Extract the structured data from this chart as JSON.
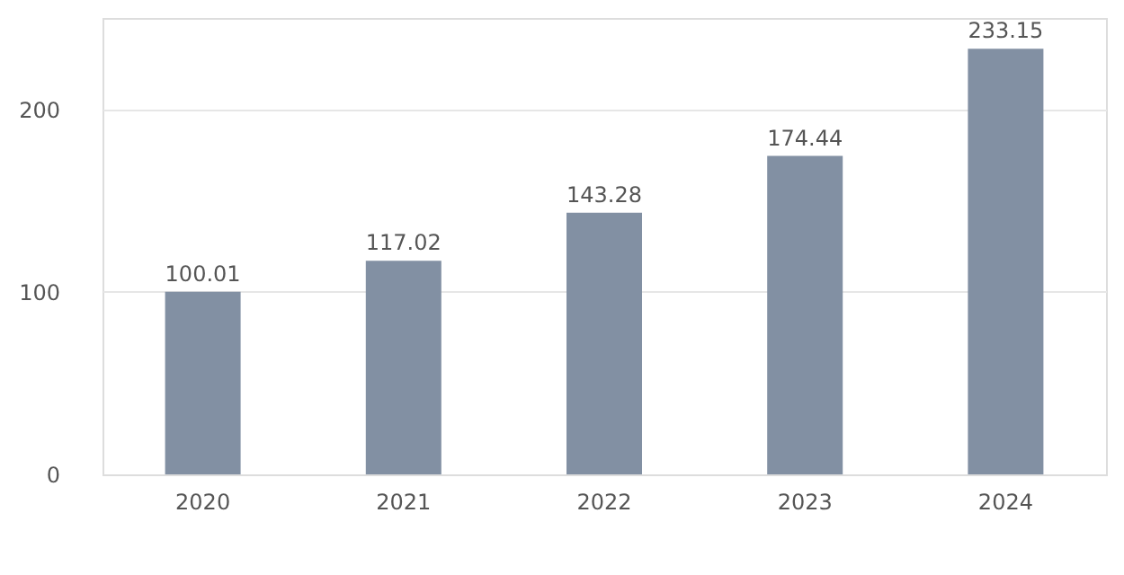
{
  "chart_data": {
    "type": "bar",
    "categories": [
      "2020",
      "2021",
      "2022",
      "2023",
      "2024"
    ],
    "values": [
      100.01,
      117.02,
      143.28,
      174.44,
      233.15
    ],
    "color": "#8290a3",
    "ylim": [
      0,
      250
    ],
    "yticks": [
      0,
      100,
      200
    ],
    "grid": "y",
    "data_labels": true
  }
}
